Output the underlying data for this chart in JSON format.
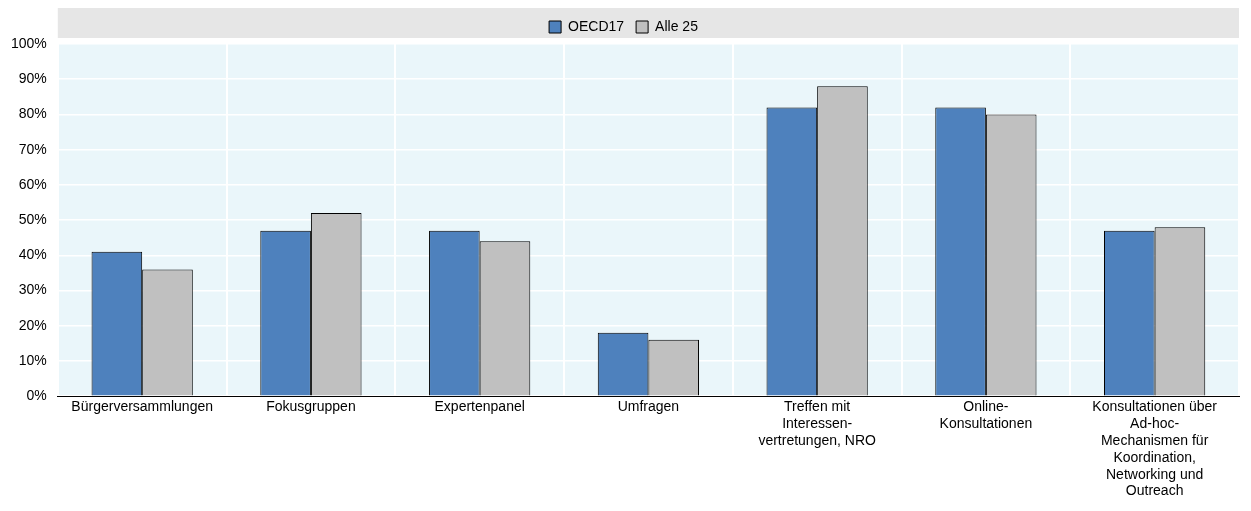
{
  "chart_data": {
    "type": "bar",
    "categories": [
      "Bürgerversammlungen",
      "Fokusgruppen",
      "Expertenpanel",
      "Umfragen",
      "Treffen mit Interessen-vertretungen, NRO",
      "Online-Konsultationen",
      "Konsultationen über Ad-hoc-Mechanismen für Koordination, Networking und Outreach"
    ],
    "series": [
      {
        "name": "OECD17",
        "color": "#4e81bd",
        "values": [
          41,
          47,
          47,
          18,
          82,
          82,
          47
        ]
      },
      {
        "name": "Alle 25",
        "color": "#c0c0c0",
        "values": [
          36,
          52,
          44,
          16,
          88,
          80,
          48
        ]
      }
    ],
    "ylim": [
      0,
      100
    ],
    "yticks": [
      {
        "value": 0,
        "label": "0%"
      },
      {
        "value": 10,
        "label": "10%"
      },
      {
        "value": 20,
        "label": "20%"
      },
      {
        "value": 30,
        "label": "30%"
      },
      {
        "value": 40,
        "label": "40%"
      },
      {
        "value": 50,
        "label": "50%"
      },
      {
        "value": 60,
        "label": "60%"
      },
      {
        "value": 70,
        "label": "70%"
      },
      {
        "value": 80,
        "label": "80%"
      },
      {
        "value": 90,
        "label": "90%"
      },
      {
        "value": 100,
        "label": "100%"
      }
    ],
    "grid": true,
    "legend": "top"
  }
}
